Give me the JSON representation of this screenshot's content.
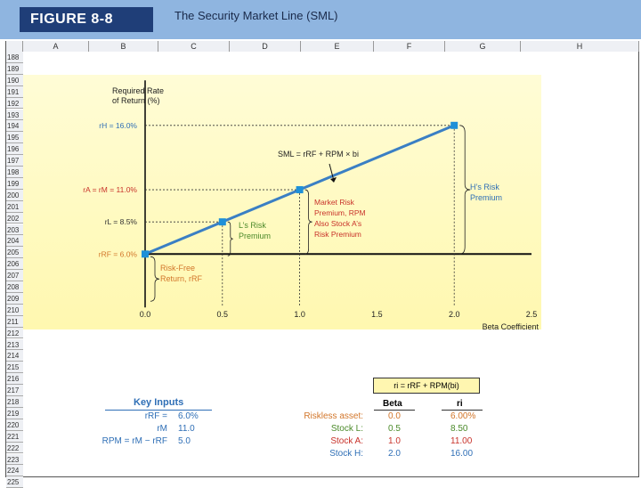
{
  "header": {
    "figure_label": "FIGURE 8-8",
    "title": "The Security Market Line (SML)"
  },
  "spreadsheet": {
    "columns": [
      "A",
      "B",
      "C",
      "D",
      "E",
      "F",
      "G",
      "H"
    ],
    "rows": [
      "188",
      "189",
      "190",
      "191",
      "192",
      "193",
      "194",
      "195",
      "196",
      "197",
      "198",
      "199",
      "200",
      "201",
      "202",
      "203",
      "204",
      "205",
      "206",
      "207",
      "208",
      "209",
      "210",
      "211",
      "212",
      "213",
      "214",
      "215",
      "216",
      "217",
      "218",
      "219",
      "220",
      "221",
      "222",
      "223",
      "224",
      "225"
    ]
  },
  "chart_data": {
    "type": "line",
    "ylabel": "Required Rate\nof Return (%)",
    "xlabel": "Beta Coefficient",
    "xlim": [
      0,
      2.5
    ],
    "ylim": [
      0,
      20
    ],
    "x_ticks": [
      "0.0",
      "0.5",
      "1.0",
      "1.5",
      "2.0",
      "2.5"
    ],
    "series": [
      {
        "name": "SML = rRF + RPM × bi",
        "x": [
          0,
          0.5,
          1.0,
          2.0
        ],
        "y": [
          6.0,
          8.5,
          11.0,
          16.0
        ]
      }
    ],
    "y_labels": [
      {
        "text": "rH = 16.0%",
        "y": 16.0
      },
      {
        "text": "rA = rM = 11.0%",
        "y": 11.0
      },
      {
        "text": "rL = 8.5%",
        "y": 8.5
      },
      {
        "text": "rRF = 6.0%",
        "y": 6.0
      }
    ],
    "annotations": {
      "sml_label": "SML = rRF + RPM × bi",
      "h_premium": [
        "H’s Risk",
        "Premium"
      ],
      "market_premium": [
        "Market Risk",
        "Premium, RPM",
        "Also Stock A’s",
        "Risk Premium"
      ],
      "l_premium": [
        "L’s Risk",
        "Premium"
      ],
      "riskfree": [
        "Risk-Free",
        "Return, rRF"
      ]
    },
    "colors": {
      "line": "#3a7fc4",
      "marker": "#1e90d8",
      "red": "#c8322a",
      "green": "#4b8a2a",
      "blue": "#2f6fb6",
      "orange": "#d2762a"
    }
  },
  "key_inputs": {
    "title": "Key Inputs",
    "rows": [
      {
        "label": "rRF =",
        "value": "6.0%"
      },
      {
        "label": "rM",
        "value": "11.0"
      },
      {
        "label": "RPM = rM − rRF",
        "value": "5.0"
      }
    ]
  },
  "formula_box": "ri = rRF + RPM(bi)",
  "results": {
    "col_beta": "Beta",
    "col_r": "ri",
    "rows": [
      {
        "label": "Riskless asset:",
        "beta": "0.0",
        "r": "6.00%",
        "color": "#d2762a"
      },
      {
        "label": "Stock L:",
        "beta": "0.5",
        "r": "8.50",
        "color": "#4b8a2a"
      },
      {
        "label": "Stock A:",
        "beta": "1.0",
        "r": "11.00",
        "color": "#c8322a"
      },
      {
        "label": "Stock H:",
        "beta": "2.0",
        "r": "16.00",
        "color": "#2f6fb6"
      }
    ]
  }
}
